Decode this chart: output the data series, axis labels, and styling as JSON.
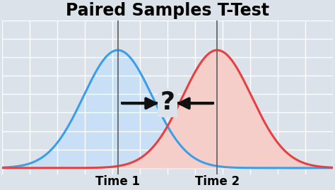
{
  "title": "Paired Samples T-Test",
  "title_fontsize": 17,
  "title_fontweight": "bold",
  "mu1": -1.8,
  "mu2": 1.8,
  "sigma": 1.25,
  "label1": "Time 1",
  "label2": "Time 2",
  "label_fontsize": 12,
  "label_fontweight": "bold",
  "color_blue_line": "#3a9fe8",
  "color_blue_fill": "#c8dff5",
  "color_red_line": "#e84040",
  "color_red_fill": "#f5ceca",
  "color_vline": "#666666",
  "bg_color": "#dce2ea",
  "grid_color": "#ffffff",
  "arrow_color": "#111111",
  "question_fontsize": 26,
  "xlim": [
    -6.0,
    6.0
  ],
  "ylim": [
    -0.018,
    0.36
  ]
}
